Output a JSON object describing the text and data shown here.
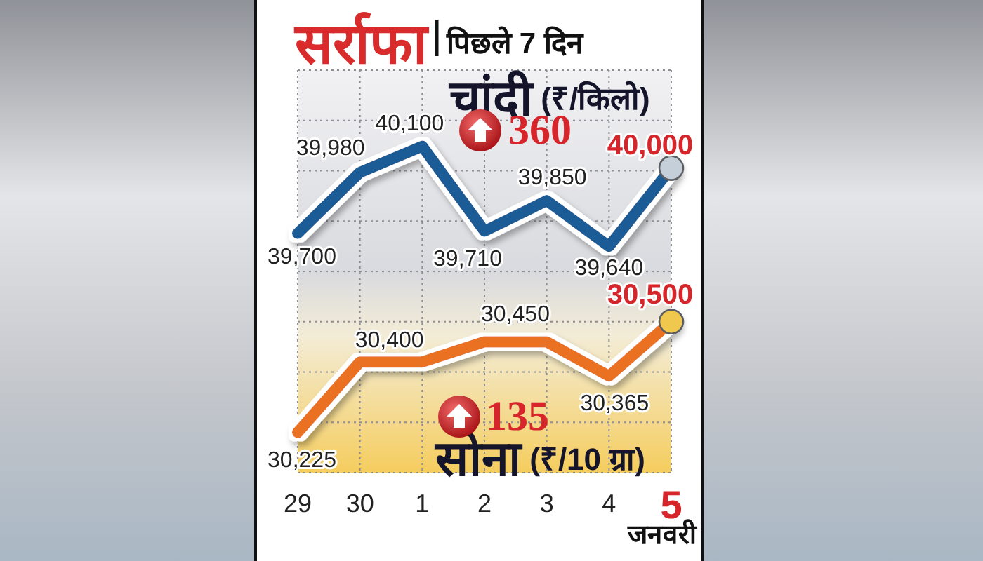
{
  "chart_data": {
    "type": "line",
    "title": "सर्राफा",
    "subtitle": "पिछले 7 दिन",
    "xlabel": "जनवरी",
    "categories": [
      "29",
      "30",
      "1",
      "2",
      "3",
      "4",
      "5"
    ],
    "series": [
      {
        "name": "चांदी (₹/किलो)",
        "color": "#1f5b96",
        "axis": "y2",
        "values": [
          39700,
          39980,
          40100,
          39710,
          39850,
          39640,
          40000
        ],
        "value_labels": [
          "39,700",
          "39,980",
          "40,100",
          "39,710",
          "39,850",
          "39,640",
          "40,000"
        ]
      },
      {
        "name": "सोना (₹/10 ग्रा)",
        "color": "#ea7122",
        "values": [
          30225,
          30400,
          30400,
          30450,
          30450,
          30365,
          30500
        ],
        "value_labels": [
          "30,225",
          "30,400",
          null,
          "30,450",
          null,
          "30,365",
          "30,500"
        ]
      },
      {
        "type": "scatter",
        "x": [
          "5"
        ],
        "values": [
          40000
        ],
        "axis": "y2",
        "color": "#c5cfda",
        "marker": "circle"
      },
      {
        "type": "scatter",
        "x": [
          "5"
        ],
        "values": [
          30500
        ],
        "color": "#f1c84e",
        "marker": "circle"
      }
    ],
    "ylim": [
      30125,
      31125
    ],
    "yticks": [
      {
        "value": 31125,
        "label": null
      },
      {
        "value": 31000,
        "label": null
      },
      {
        "value": 30875,
        "label": null
      },
      {
        "value": 30750,
        "label": null
      },
      {
        "value": 30625,
        "label": null
      },
      {
        "value": 30500,
        "label": null
      },
      {
        "value": 30375,
        "label": null
      },
      {
        "value": 30250,
        "label": null
      },
      {
        "value": 30125,
        "label": null
      }
    ],
    "y2lim": [
      38600,
      40450
    ],
    "tick_labels": "x",
    "grid": true,
    "line_style": "solid",
    "annotations": [
      "360",
      "135"
    ]
  }
}
